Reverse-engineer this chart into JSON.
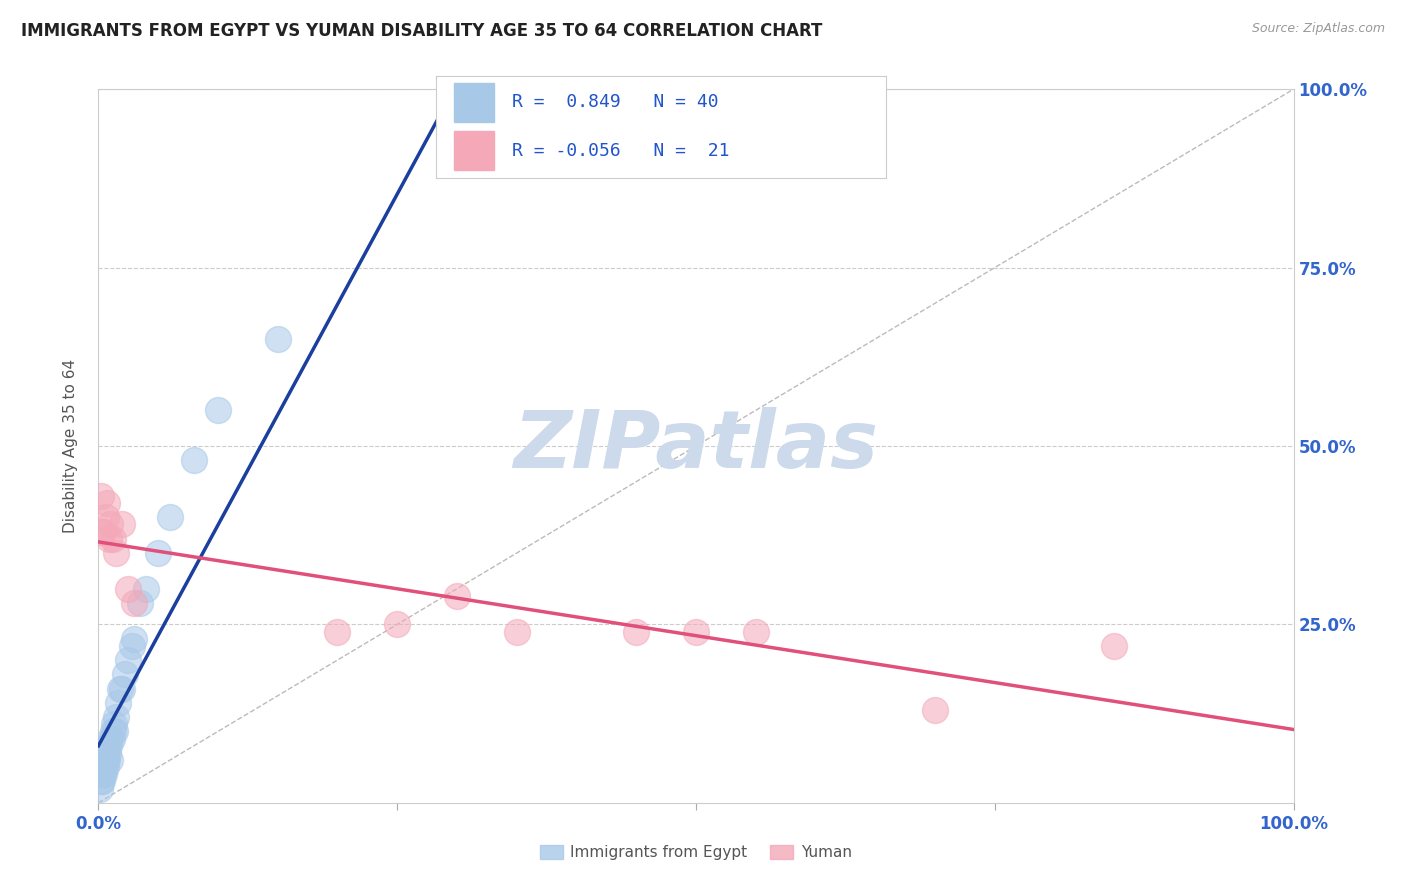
{
  "title": "IMMIGRANTS FROM EGYPT VS YUMAN DISABILITY AGE 35 TO 64 CORRELATION CHART",
  "source_text": "Source: ZipAtlas.com",
  "ylabel": "Disability Age 35 to 64",
  "xlim": [
    0.0,
    1.0
  ],
  "ylim": [
    0.0,
    1.0
  ],
  "blue_R": 0.849,
  "blue_N": 40,
  "pink_R": -0.056,
  "pink_N": 21,
  "blue_color": "#a8c8e8",
  "blue_line_color": "#1a3f9f",
  "pink_color": "#f4a8b8",
  "pink_line_color": "#e0507a",
  "watermark": "ZIPatlas",
  "watermark_color": "#ccdaeb",
  "legend_text_color": "#2255cc",
  "legend_label_color": "#333333",
  "axis_label_color": "#3366cc",
  "background_color": "#ffffff",
  "blue_scatter_x": [
    0.001,
    0.002,
    0.002,
    0.003,
    0.003,
    0.003,
    0.004,
    0.004,
    0.005,
    0.005,
    0.005,
    0.006,
    0.006,
    0.006,
    0.007,
    0.007,
    0.008,
    0.009,
    0.01,
    0.01,
    0.011,
    0.012,
    0.013,
    0.014,
    0.015,
    0.016,
    0.018,
    0.02,
    0.022,
    0.025,
    0.028,
    0.03,
    0.035,
    0.04,
    0.05,
    0.06,
    0.08,
    0.1,
    0.15,
    0.33
  ],
  "blue_scatter_y": [
    0.02,
    0.03,
    0.04,
    0.03,
    0.05,
    0.06,
    0.04,
    0.06,
    0.04,
    0.05,
    0.07,
    0.05,
    0.06,
    0.07,
    0.06,
    0.08,
    0.07,
    0.08,
    0.06,
    0.09,
    0.09,
    0.1,
    0.11,
    0.1,
    0.12,
    0.14,
    0.16,
    0.16,
    0.18,
    0.2,
    0.22,
    0.23,
    0.28,
    0.3,
    0.35,
    0.4,
    0.48,
    0.55,
    0.65,
    0.9
  ],
  "pink_scatter_x": [
    0.002,
    0.003,
    0.004,
    0.006,
    0.007,
    0.009,
    0.01,
    0.012,
    0.015,
    0.02,
    0.025,
    0.03,
    0.2,
    0.25,
    0.3,
    0.35,
    0.45,
    0.5,
    0.55,
    0.7,
    0.85
  ],
  "pink_scatter_y": [
    0.43,
    0.38,
    0.38,
    0.4,
    0.42,
    0.37,
    0.39,
    0.37,
    0.35,
    0.39,
    0.3,
    0.28,
    0.24,
    0.25,
    0.29,
    0.24,
    0.24,
    0.24,
    0.24,
    0.13,
    0.22
  ],
  "title_fontsize": 12,
  "label_fontsize": 11,
  "tick_fontsize": 12
}
